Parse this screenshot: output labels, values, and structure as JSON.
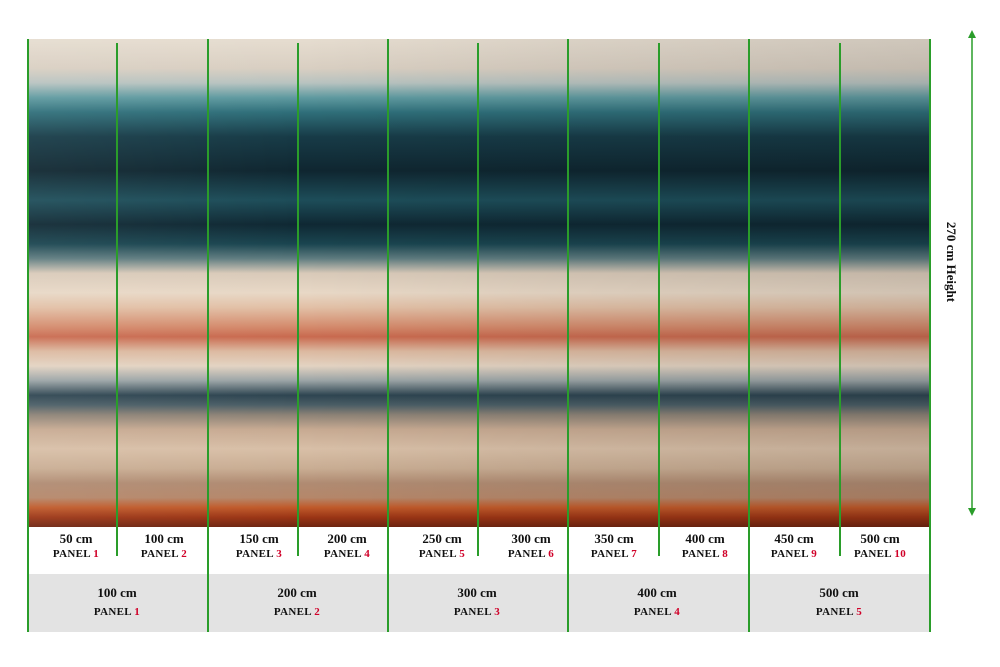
{
  "height_label": "270 cm Height",
  "half_panels": [
    {
      "width": "50 cm",
      "panel": "PANEL",
      "num": "1"
    },
    {
      "width": "100 cm",
      "panel": "PANEL",
      "num": "2"
    },
    {
      "width": "150 cm",
      "panel": "PANEL",
      "num": "3"
    },
    {
      "width": "200 cm",
      "panel": "PANEL",
      "num": "4"
    },
    {
      "width": "250 cm",
      "panel": "PANEL",
      "num": "5"
    },
    {
      "width": "300 cm",
      "panel": "PANEL",
      "num": "6"
    },
    {
      "width": "350 cm",
      "panel": "PANEL",
      "num": "7"
    },
    {
      "width": "400 cm",
      "panel": "PANEL",
      "num": "8"
    },
    {
      "width": "450 cm",
      "panel": "PANEL",
      "num": "9"
    },
    {
      "width": "500 cm",
      "panel": "PANEL",
      "num": "10"
    }
  ],
  "full_panels": [
    {
      "width": "100 cm",
      "panel": "PANEL",
      "num": "1"
    },
    {
      "width": "200 cm",
      "panel": "PANEL",
      "num": "2"
    },
    {
      "width": "300 cm",
      "panel": "PANEL",
      "num": "3"
    },
    {
      "width": "400 cm",
      "panel": "PANEL",
      "num": "4"
    },
    {
      "width": "500 cm",
      "panel": "PANEL",
      "num": "5"
    }
  ],
  "colors": {
    "guide_line": "#2a9d2a",
    "panel_number": "#d00028"
  }
}
